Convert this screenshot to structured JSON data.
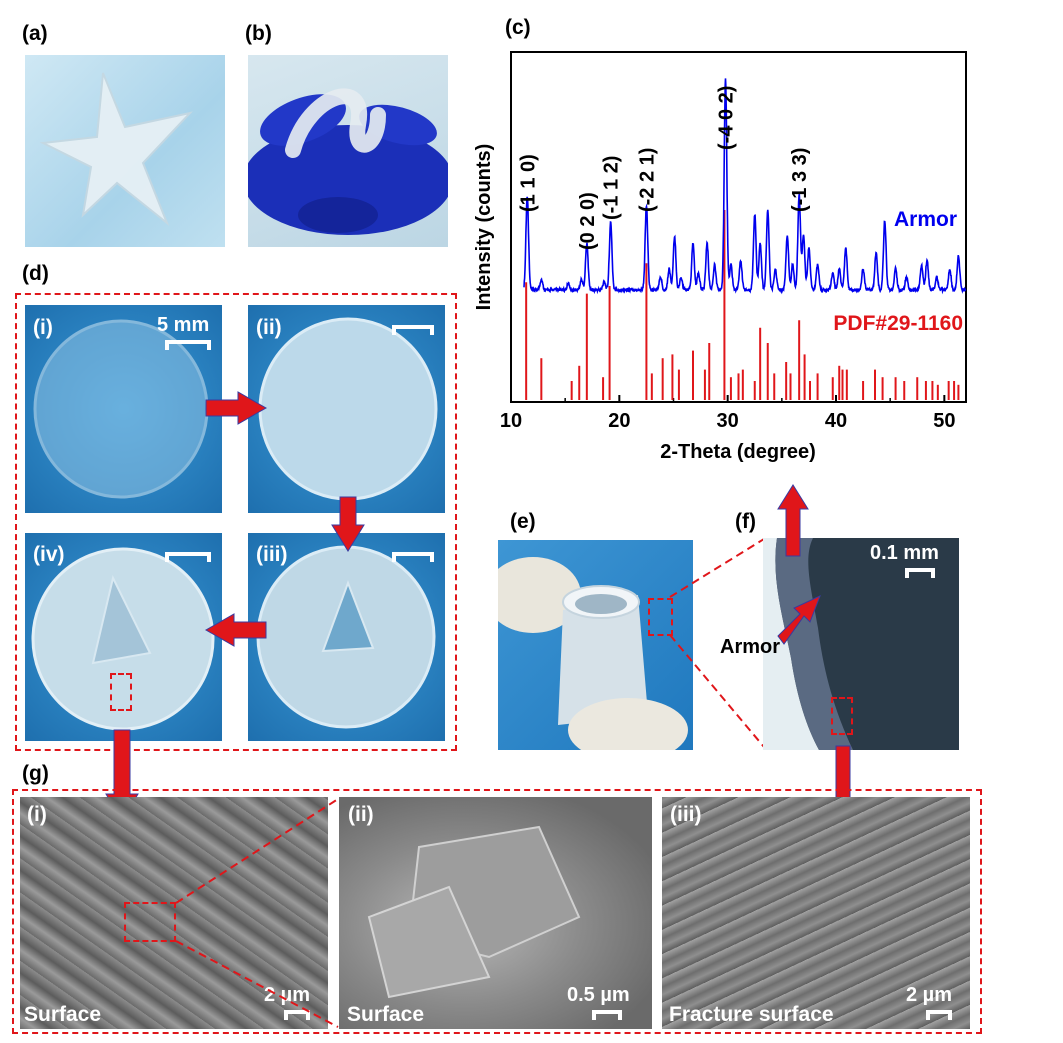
{
  "panels": {
    "a": "(a)",
    "b": "(b)",
    "c": "(c)",
    "d": "(d)",
    "e": "(e)",
    "f": "(f)",
    "g": "(g)"
  },
  "panel_d": {
    "sub_i": "(i)",
    "sub_ii": "(ii)",
    "sub_iii": "(iii)",
    "sub_iv": "(iv)",
    "scale": "5 mm"
  },
  "panel_f": {
    "scale": "0.1 mm",
    "annotation": "Armor"
  },
  "panel_g": {
    "sub_i": "(i)",
    "sub_ii": "(ii)",
    "sub_iii": "(iii)",
    "caption_i": "Surface",
    "caption_ii": "Surface",
    "caption_iii": "Fracture surface",
    "scale_i": "2 µm",
    "scale_ii": "0.5 µm",
    "scale_iii": "2 µm"
  },
  "colors": {
    "accent": "#e0161a",
    "armor": "#0000ee",
    "pdf": "#e0161a",
    "photo_blue": "#2f8fd0",
    "sem_gray": "#7d7d7d"
  },
  "chart_data": {
    "type": "line",
    "xlabel": "2-Theta (degree)",
    "ylabel": "Intensity (counts)",
    "xlim": [
      10,
      52
    ],
    "xticks": [
      10,
      20,
      30,
      40,
      50
    ],
    "series": [
      {
        "name": "Armor",
        "peaks": [
          {
            "x": 11.5,
            "h": 0.45
          },
          {
            "x": 12.8,
            "h": 0.05
          },
          {
            "x": 15.3,
            "h": 0.03
          },
          {
            "x": 16.5,
            "h": 0.05
          },
          {
            "x": 17.0,
            "h": 0.22
          },
          {
            "x": 18.6,
            "h": 0.04
          },
          {
            "x": 19.2,
            "h": 0.32
          },
          {
            "x": 22.5,
            "h": 0.4
          },
          {
            "x": 23.8,
            "h": 0.06
          },
          {
            "x": 24.6,
            "h": 0.1
          },
          {
            "x": 25.1,
            "h": 0.25
          },
          {
            "x": 25.7,
            "h": 0.06
          },
          {
            "x": 26.8,
            "h": 0.22
          },
          {
            "x": 27.3,
            "h": 0.08
          },
          {
            "x": 28.1,
            "h": 0.22
          },
          {
            "x": 28.8,
            "h": 0.12
          },
          {
            "x": 29.8,
            "h": 1.0
          },
          {
            "x": 30.3,
            "h": 0.12
          },
          {
            "x": 31.2,
            "h": 0.14
          },
          {
            "x": 32.5,
            "h": 0.36
          },
          {
            "x": 33.0,
            "h": 0.22
          },
          {
            "x": 33.7,
            "h": 0.38
          },
          {
            "x": 34.4,
            "h": 0.1
          },
          {
            "x": 35.5,
            "h": 0.26
          },
          {
            "x": 36.0,
            "h": 0.12
          },
          {
            "x": 36.6,
            "h": 0.45
          },
          {
            "x": 37.0,
            "h": 0.26
          },
          {
            "x": 37.5,
            "h": 0.2
          },
          {
            "x": 38.3,
            "h": 0.12
          },
          {
            "x": 39.7,
            "h": 0.08
          },
          {
            "x": 40.3,
            "h": 0.1
          },
          {
            "x": 40.9,
            "h": 0.2
          },
          {
            "x": 42.5,
            "h": 0.1
          },
          {
            "x": 43.7,
            "h": 0.18
          },
          {
            "x": 44.5,
            "h": 0.33
          },
          {
            "x": 45.5,
            "h": 0.1
          },
          {
            "x": 46.5,
            "h": 0.06
          },
          {
            "x": 47.9,
            "h": 0.12
          },
          {
            "x": 48.4,
            "h": 0.14
          },
          {
            "x": 49.3,
            "h": 0.06
          },
          {
            "x": 50.5,
            "h": 0.1
          },
          {
            "x": 51.3,
            "h": 0.16
          }
        ]
      },
      {
        "name": "PDF#29-1160",
        "sticks": [
          {
            "x": 11.4,
            "h": 0.62
          },
          {
            "x": 12.8,
            "h": 0.22
          },
          {
            "x": 15.6,
            "h": 0.1
          },
          {
            "x": 16.3,
            "h": 0.18
          },
          {
            "x": 17.0,
            "h": 0.56
          },
          {
            "x": 18.5,
            "h": 0.12
          },
          {
            "x": 19.1,
            "h": 0.6
          },
          {
            "x": 22.5,
            "h": 0.72
          },
          {
            "x": 23.0,
            "h": 0.14
          },
          {
            "x": 24.0,
            "h": 0.22
          },
          {
            "x": 24.9,
            "h": 0.24
          },
          {
            "x": 25.5,
            "h": 0.16
          },
          {
            "x": 26.8,
            "h": 0.26
          },
          {
            "x": 27.9,
            "h": 0.16
          },
          {
            "x": 28.3,
            "h": 0.3
          },
          {
            "x": 29.7,
            "h": 1.0
          },
          {
            "x": 30.3,
            "h": 0.12
          },
          {
            "x": 31.0,
            "h": 0.14
          },
          {
            "x": 31.4,
            "h": 0.16
          },
          {
            "x": 32.5,
            "h": 0.1
          },
          {
            "x": 33.0,
            "h": 0.38
          },
          {
            "x": 33.7,
            "h": 0.3
          },
          {
            "x": 34.3,
            "h": 0.14
          },
          {
            "x": 35.4,
            "h": 0.2
          },
          {
            "x": 35.8,
            "h": 0.14
          },
          {
            "x": 36.6,
            "h": 0.42
          },
          {
            "x": 37.1,
            "h": 0.24
          },
          {
            "x": 37.6,
            "h": 0.1
          },
          {
            "x": 38.3,
            "h": 0.14
          },
          {
            "x": 39.7,
            "h": 0.12
          },
          {
            "x": 40.3,
            "h": 0.18
          },
          {
            "x": 40.6,
            "h": 0.16
          },
          {
            "x": 41.0,
            "h": 0.16
          },
          {
            "x": 42.5,
            "h": 0.1
          },
          {
            "x": 43.6,
            "h": 0.16
          },
          {
            "x": 44.3,
            "h": 0.12
          },
          {
            "x": 45.5,
            "h": 0.12
          },
          {
            "x": 46.3,
            "h": 0.1
          },
          {
            "x": 47.5,
            "h": 0.12
          },
          {
            "x": 48.3,
            "h": 0.1
          },
          {
            "x": 48.9,
            "h": 0.1
          },
          {
            "x": 49.4,
            "h": 0.08
          },
          {
            "x": 50.4,
            "h": 0.1
          },
          {
            "x": 50.9,
            "h": 0.1
          },
          {
            "x": 51.3,
            "h": 0.08
          }
        ]
      }
    ],
    "peak_labels": [
      {
        "text": "(1 1 0)",
        "x": 11.5
      },
      {
        "text": "(0 2 0)",
        "x": 17.0
      },
      {
        "text": "(-1 1 2)",
        "x": 19.2
      },
      {
        "text": "(-2 2 1)",
        "x": 22.5
      },
      {
        "text": "(-4 0 2)",
        "x": 29.8
      },
      {
        "text": "(-1 3 3)",
        "x": 36.6
      }
    ],
    "legend_in_plot": [
      "Armor",
      "PDF#29-1160"
    ]
  }
}
